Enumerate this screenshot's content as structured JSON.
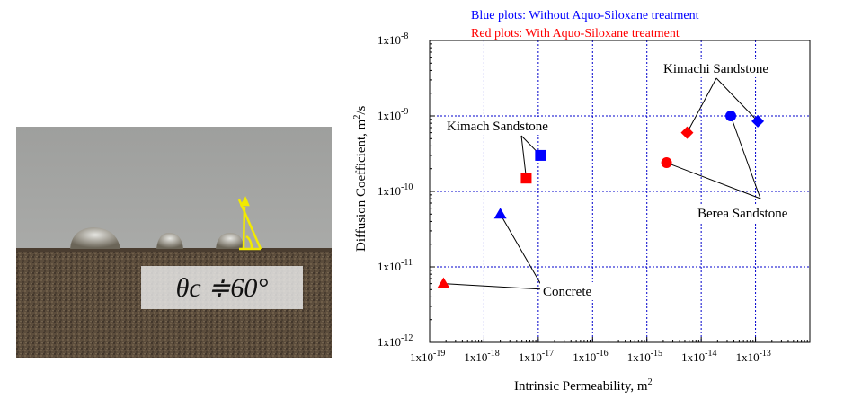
{
  "photo": {
    "angle_text": "θc ≑60°",
    "colors": {
      "backdrop": "#a7a8a6",
      "stone": "#5a4b3a",
      "marker": "#f2ea00"
    }
  },
  "chart_data": {
    "type": "scatter",
    "title": "",
    "xlabel": "Intrinsic Permeability,  m²",
    "ylabel": "Diffusion Coefficient, m²/s",
    "xscale": "log",
    "yscale": "log",
    "xlim": [
      1e-19,
      1e-12
    ],
    "ylim": [
      1e-12,
      1e-08
    ],
    "x_ticks": [
      {
        "value": 1e-19,
        "base": "1x10",
        "exp": "-19"
      },
      {
        "value": 1e-18,
        "base": "1x10",
        "exp": "-18"
      },
      {
        "value": 1e-17,
        "base": "1x10",
        "exp": "-17"
      },
      {
        "value": 1e-16,
        "base": "1x10",
        "exp": "-16"
      },
      {
        "value": 1e-15,
        "base": "1x10",
        "exp": "-15"
      },
      {
        "value": 1e-14,
        "base": "1x10",
        "exp": "-14"
      },
      {
        "value": 1e-13,
        "base": "1x10",
        "exp": "-13"
      }
    ],
    "y_ticks": [
      {
        "value": 1e-08,
        "base": "1x10",
        "exp": "-8"
      },
      {
        "value": 1e-09,
        "base": "1x10",
        "exp": "-9"
      },
      {
        "value": 1e-10,
        "base": "1x10",
        "exp": "-10"
      },
      {
        "value": 1e-11,
        "base": "1x10",
        "exp": "-11"
      },
      {
        "value": 1e-12,
        "base": "1x10",
        "exp": "-12"
      }
    ],
    "grid": true,
    "legend": {
      "placement": "top",
      "entries": [
        {
          "text": "Blue plots: Without Aquo-Siloxane treatment",
          "color": "#0000ff"
        },
        {
          "text": "Red plots: With Aquo-Siloxane treatment",
          "color": "#ff0000"
        }
      ]
    },
    "series": [
      {
        "color": "#0000ff",
        "points": [
          {
            "group": "Concrete",
            "marker": "triangle",
            "x": 2e-18,
            "y": 5e-11
          },
          {
            "group": "Kimach Sandstone",
            "marker": "square",
            "x": 1.1e-17,
            "y": 3e-10
          },
          {
            "group": "Berea Sandstone",
            "marker": "circle",
            "x": 3.5e-14,
            "y": 1e-09
          },
          {
            "group": "Kimachi Sandstone",
            "marker": "diamond",
            "x": 1.1e-13,
            "y": 8.5e-10
          }
        ]
      },
      {
        "color": "#ff0000",
        "points": [
          {
            "group": "Concrete",
            "marker": "triangle",
            "x": 1.8e-19,
            "y": 6e-12
          },
          {
            "group": "Kimach Sandstone",
            "marker": "square",
            "x": 6e-18,
            "y": 1.5e-10
          },
          {
            "group": "Berea Sandstone",
            "marker": "circle",
            "x": 2.3e-15,
            "y": 2.4e-10
          },
          {
            "group": "Kimachi Sandstone",
            "marker": "diamond",
            "x": 5.5e-15,
            "y": 6e-10
          }
        ]
      }
    ],
    "annotations": [
      {
        "text": "Kimachi Sandstone",
        "targets": [
          [
            5.5e-15,
            6e-10
          ],
          [
            1.1e-13,
            8.5e-10
          ]
        ]
      },
      {
        "text": "Kimach Sandstone",
        "targets": [
          [
            6e-18,
            1.5e-10
          ],
          [
            1.1e-17,
            3e-10
          ]
        ]
      },
      {
        "text": "Berea Sandstone",
        "targets": [
          [
            2.3e-15,
            2.4e-10
          ],
          [
            3.5e-14,
            1e-09
          ]
        ]
      },
      {
        "text": "Concrete",
        "targets": [
          [
            1.8e-19,
            6e-12
          ],
          [
            2e-18,
            5e-11
          ]
        ]
      }
    ]
  }
}
